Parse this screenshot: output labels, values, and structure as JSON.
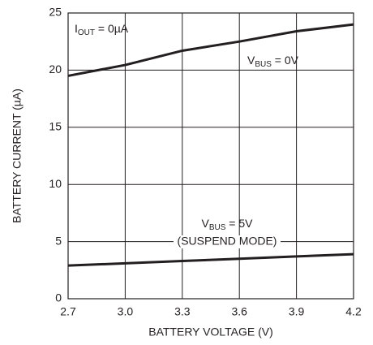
{
  "chart_data": {
    "type": "line",
    "x_label": "BATTERY VOLTAGE (V)",
    "y_label": "BATTERY CURRENT (µA)",
    "x": [
      2.7,
      3.0,
      3.3,
      3.6,
      3.9,
      4.2
    ],
    "xlim": [
      2.7,
      4.2
    ],
    "xticks": [
      2.7,
      {
        "value": 3.0,
        "label": "3.0"
      },
      3.3,
      3.6,
      3.9,
      4.2
    ],
    "ylim": [
      0,
      25
    ],
    "yticks": [
      0,
      5,
      10,
      15,
      20,
      25
    ],
    "grid": true,
    "series": [
      {
        "label": [
          {
            "text": "V"
          },
          {
            "text": "BUS",
            "sub": true
          },
          {
            "text": " = 0V"
          }
        ],
        "color": "#231f20",
        "values": [
          19.5,
          20.45,
          21.7,
          22.5,
          23.4,
          24.0
        ]
      },
      {
        "label": [
          {
            "text": "V"
          },
          {
            "text": "BUS",
            "sub": true
          },
          {
            "text": " = 5V"
          }
        ],
        "note": "(SUSPEND MODE)",
        "color": "#231f20",
        "values": [
          2.9,
          3.1,
          3.3,
          3.5,
          3.7,
          3.9
        ]
      }
    ],
    "annotations": [
      {
        "parts": [
          {
            "text": "I"
          },
          {
            "text": "OUT",
            "sub": true
          },
          {
            "text": " = 0µA"
          }
        ]
      }
    ]
  }
}
